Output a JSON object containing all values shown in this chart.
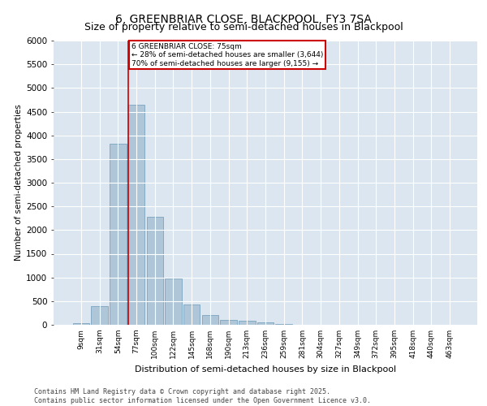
{
  "title": "6, GREENBRIAR CLOSE, BLACKPOOL, FY3 7SA",
  "subtitle": "Size of property relative to semi-detached houses in Blackpool",
  "xlabel": "Distribution of semi-detached houses by size in Blackpool",
  "ylabel": "Number of semi-detached properties",
  "categories": [
    "9sqm",
    "31sqm",
    "54sqm",
    "77sqm",
    "100sqm",
    "122sqm",
    "145sqm",
    "168sqm",
    "190sqm",
    "213sqm",
    "236sqm",
    "259sqm",
    "281sqm",
    "304sqm",
    "327sqm",
    "349sqm",
    "372sqm",
    "395sqm",
    "418sqm",
    "440sqm",
    "463sqm"
  ],
  "bar_heights": [
    30,
    390,
    3820,
    4640,
    2280,
    970,
    430,
    200,
    100,
    80,
    50,
    10,
    5,
    3,
    2,
    1,
    1,
    1,
    1,
    1,
    1
  ],
  "bar_color": "#aec6d8",
  "bar_edge_color": "#6b9ab8",
  "vline_color": "#cc0000",
  "annotation_title": "6 GREENBRIAR CLOSE: 75sqm",
  "annotation_line1": "← 28% of semi-detached houses are smaller (3,644)",
  "annotation_line2": "70% of semi-detached houses are larger (9,155) →",
  "annotation_box_color": "#cc0000",
  "ylim": [
    0,
    6000
  ],
  "yticks": [
    0,
    500,
    1000,
    1500,
    2000,
    2500,
    3000,
    3500,
    4000,
    4500,
    5000,
    5500,
    6000
  ],
  "background_color": "#dce6f0",
  "footer": "Contains HM Land Registry data © Crown copyright and database right 2025.\nContains public sector information licensed under the Open Government Licence v3.0.",
  "title_fontsize": 10,
  "subtitle_fontsize": 9
}
